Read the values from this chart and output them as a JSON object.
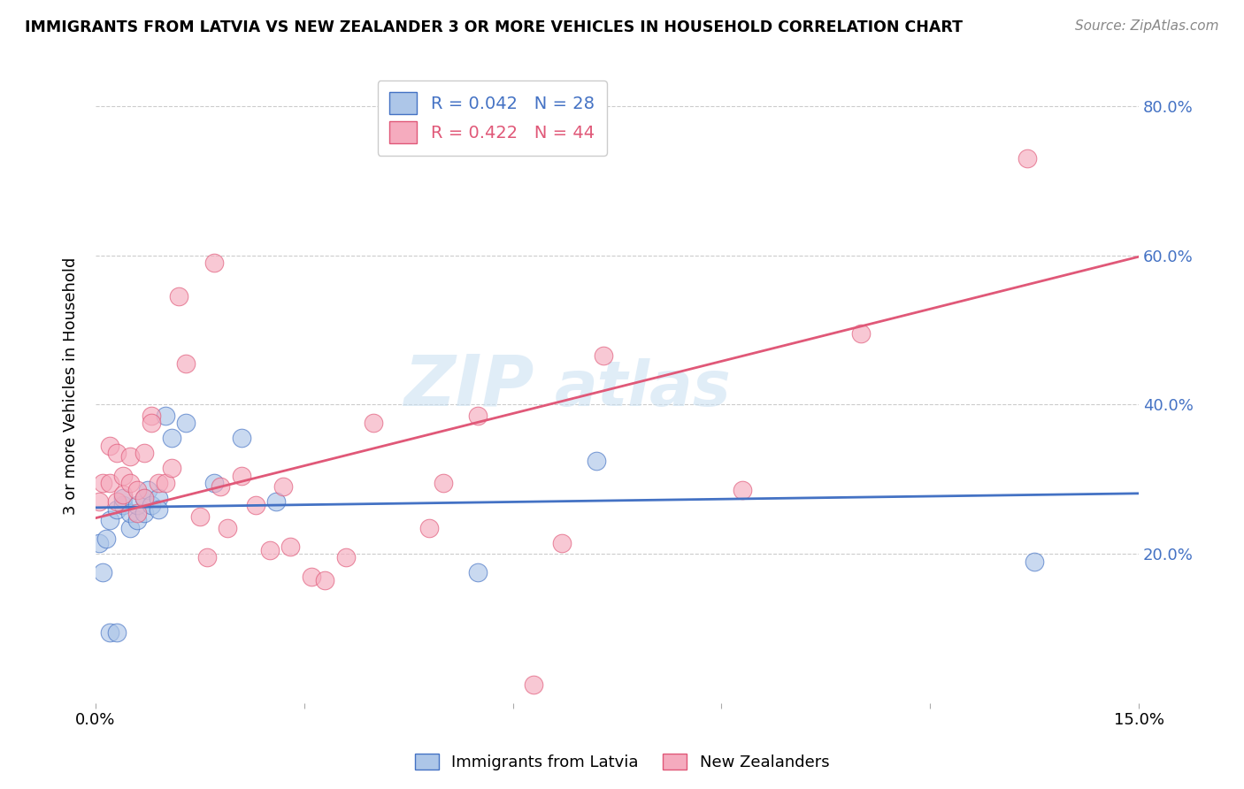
{
  "title": "IMMIGRANTS FROM LATVIA VS NEW ZEALANDER 3 OR MORE VEHICLES IN HOUSEHOLD CORRELATION CHART",
  "source": "Source: ZipAtlas.com",
  "ylabel": "3 or more Vehicles in Household",
  "xmin": 0.0,
  "xmax": 0.15,
  "ymin": 0.0,
  "ymax": 0.85,
  "yticks": [
    0.2,
    0.4,
    0.6,
    0.8
  ],
  "ytick_labels": [
    "20.0%",
    "40.0%",
    "60.0%",
    "80.0%"
  ],
  "xticks": [
    0.0,
    0.03,
    0.06,
    0.09,
    0.12,
    0.15
  ],
  "xtick_labels": [
    "0.0%",
    "",
    "",
    "",
    "",
    "15.0%"
  ],
  "blue_R": "0.042",
  "blue_N": "28",
  "pink_R": "0.422",
  "pink_N": "44",
  "legend_label_blue": "Immigrants from Latvia",
  "legend_label_pink": "New Zealanders",
  "blue_color": "#adc6e8",
  "pink_color": "#f5abbe",
  "blue_line_color": "#4472c4",
  "pink_line_color": "#e05878",
  "watermark_zip": "ZIP",
  "watermark_atlas": "atlas",
  "blue_line_x0": 0.0,
  "blue_line_y0": 0.262,
  "blue_line_x1": 0.15,
  "blue_line_y1": 0.281,
  "pink_line_x0": 0.0,
  "pink_line_y0": 0.248,
  "pink_line_x1": 0.15,
  "pink_line_y1": 0.598,
  "blue_scatter_x": [
    0.0005,
    0.001,
    0.0015,
    0.002,
    0.002,
    0.003,
    0.003,
    0.004,
    0.004,
    0.005,
    0.005,
    0.006,
    0.006,
    0.007,
    0.007,
    0.0075,
    0.008,
    0.009,
    0.009,
    0.01,
    0.011,
    0.013,
    0.017,
    0.021,
    0.026,
    0.055,
    0.072,
    0.135
  ],
  "blue_scatter_y": [
    0.215,
    0.175,
    0.22,
    0.245,
    0.095,
    0.095,
    0.26,
    0.265,
    0.275,
    0.235,
    0.255,
    0.245,
    0.265,
    0.275,
    0.255,
    0.285,
    0.265,
    0.275,
    0.26,
    0.385,
    0.355,
    0.375,
    0.295,
    0.355,
    0.27,
    0.175,
    0.325,
    0.19
  ],
  "pink_scatter_x": [
    0.0005,
    0.001,
    0.002,
    0.002,
    0.003,
    0.003,
    0.004,
    0.004,
    0.005,
    0.005,
    0.006,
    0.006,
    0.007,
    0.007,
    0.008,
    0.008,
    0.009,
    0.01,
    0.011,
    0.012,
    0.013,
    0.015,
    0.016,
    0.017,
    0.018,
    0.019,
    0.021,
    0.023,
    0.025,
    0.027,
    0.028,
    0.031,
    0.033,
    0.036,
    0.04,
    0.048,
    0.05,
    0.055,
    0.063,
    0.067,
    0.073,
    0.093,
    0.11,
    0.134
  ],
  "pink_scatter_y": [
    0.27,
    0.295,
    0.295,
    0.345,
    0.27,
    0.335,
    0.305,
    0.28,
    0.295,
    0.33,
    0.285,
    0.255,
    0.335,
    0.275,
    0.385,
    0.375,
    0.295,
    0.295,
    0.315,
    0.545,
    0.455,
    0.25,
    0.195,
    0.59,
    0.29,
    0.235,
    0.305,
    0.265,
    0.205,
    0.29,
    0.21,
    0.17,
    0.165,
    0.195,
    0.375,
    0.235,
    0.295,
    0.385,
    0.025,
    0.215,
    0.465,
    0.285,
    0.495,
    0.73
  ]
}
